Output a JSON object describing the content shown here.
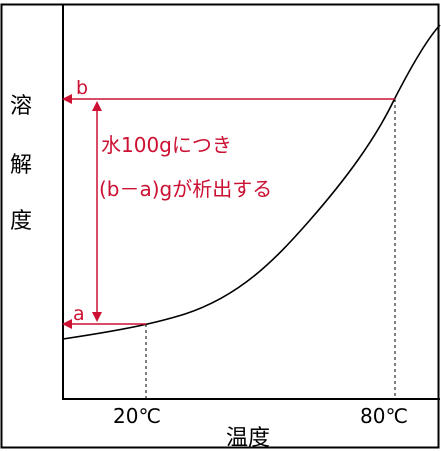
{
  "diagram": {
    "y_axis_label_chars": [
      "溶",
      "解",
      "度"
    ],
    "x_axis_label": "温度",
    "x_ticks": [
      "20℃",
      "80℃"
    ],
    "marker_b": "b",
    "marker_a": "a",
    "annotation_line1": "水100gにつき",
    "annotation_line2": "(b－a)gが析出する",
    "colors": {
      "curve": "#000000",
      "annotation": "#cc1133",
      "frame": "#000000"
    }
  }
}
